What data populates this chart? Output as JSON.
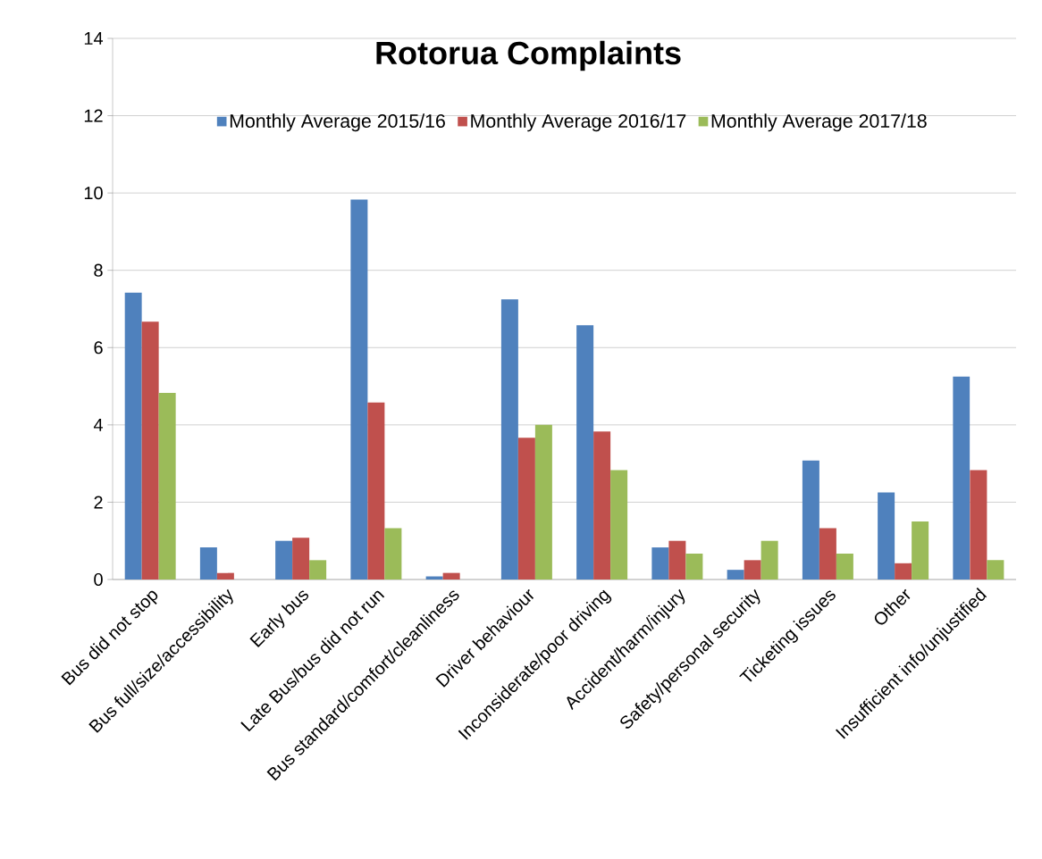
{
  "chart_data": {
    "type": "bar",
    "title": "Rotorua Complaints",
    "categories": [
      "Bus did not stop",
      "Bus full/size/accessibility",
      "Early bus",
      "Late Bus/bus did not run",
      "Bus standard/comfort/cleanliness",
      "Driver behaviour",
      "Inconsiderate/poor  driving",
      "Accident/harm/injury",
      "Safety/personal security",
      "Ticketing issues",
      "Other",
      "Insufficient info/unjustified"
    ],
    "series": [
      {
        "name": "Monthly Average 2015/16",
        "color": "#4f81bd",
        "values": [
          7.42,
          0.83,
          1.0,
          9.83,
          0.08,
          7.25,
          6.58,
          0.83,
          0.25,
          3.08,
          2.25,
          5.25
        ]
      },
      {
        "name": "Monthly Average 2016/17",
        "color": "#c0504d",
        "values": [
          6.67,
          0.17,
          1.08,
          4.58,
          0.17,
          3.67,
          3.83,
          1.0,
          0.5,
          1.33,
          0.42,
          2.83
        ]
      },
      {
        "name": "Monthly Average 2017/18",
        "color": "#9bbb59",
        "values": [
          4.83,
          0,
          0.5,
          1.33,
          0,
          4.0,
          2.83,
          0.67,
          1.0,
          0.67,
          1.5,
          0.5
        ]
      }
    ],
    "ylim": [
      0,
      14
    ],
    "yticks": [
      0,
      2,
      4,
      6,
      8,
      10,
      12,
      14
    ],
    "grid": "y",
    "legend": "top"
  }
}
